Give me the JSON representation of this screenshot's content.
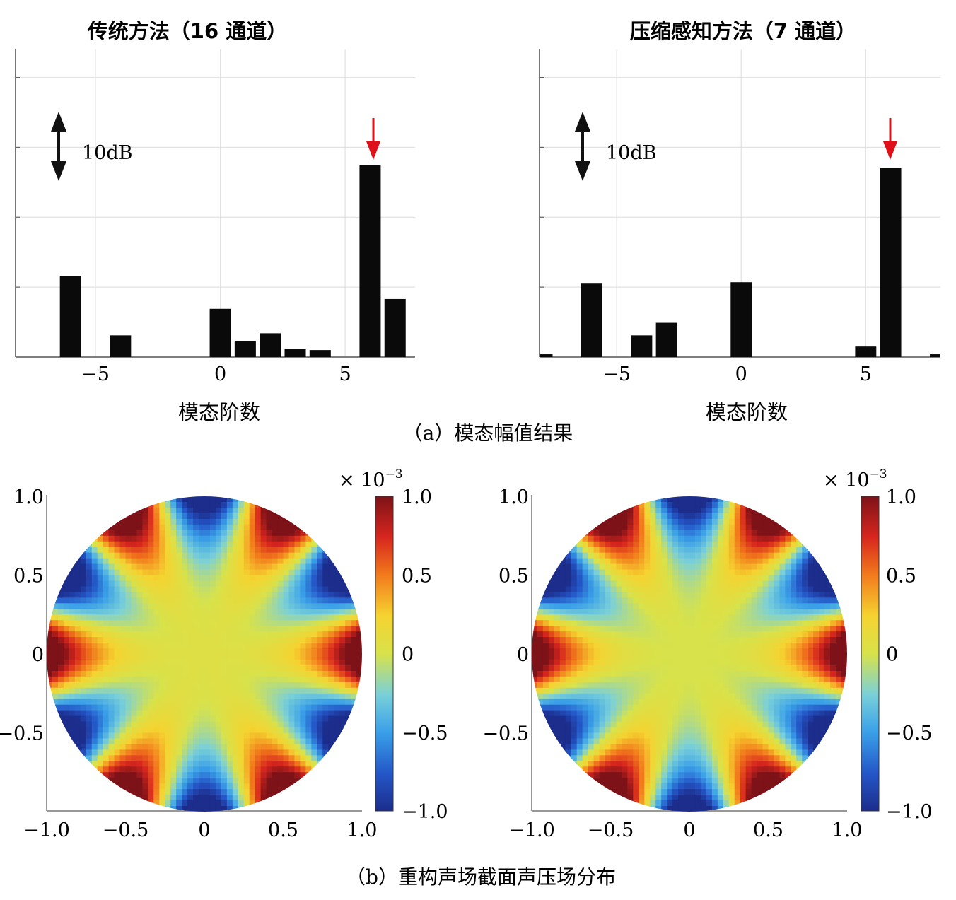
{
  "chart_data": [
    {
      "type": "bar",
      "title": "传统方法（16 通道）",
      "xlabel": "模态阶数",
      "ylabel": "",
      "x": [
        -6,
        -4,
        0,
        1,
        2,
        3,
        4,
        6,
        7
      ],
      "values": [
        11.6,
        3.1,
        6.9,
        2.3,
        3.4,
        1.2,
        1.0,
        27.5,
        8.3
      ],
      "xlim": [
        -8.2,
        7.8
      ],
      "ylim": [
        0,
        44
      ],
      "xticks": [
        -5,
        0,
        5
      ],
      "xtick_labels": [
        "−5",
        "0",
        "5"
      ],
      "scale_annotation": "10dB",
      "highlight_x": 6,
      "grid": true
    },
    {
      "type": "bar",
      "title": "压缩感知方法（7 通道）",
      "xlabel": "模态阶数",
      "ylabel": "",
      "x": [
        -8,
        -6,
        -4,
        -3,
        0,
        5,
        6,
        8
      ],
      "values": [
        0.4,
        10.6,
        3.1,
        4.9,
        10.7,
        1.5,
        27.1,
        0.4
      ],
      "xlim": [
        -8.1,
        8
      ],
      "ylim": [
        0,
        44
      ],
      "xticks": [
        -5,
        0,
        5
      ],
      "xtick_labels": [
        "−5",
        "0",
        "5"
      ],
      "scale_annotation": "10dB",
      "highlight_x": 6,
      "grid": true
    },
    {
      "type": "heatmap",
      "title": "传统方法（16 通道）",
      "field": "cos(6θ) modal pattern on unit disk",
      "xlim": [
        -1.0,
        1.0
      ],
      "ylim": [
        -1.0,
        1.0
      ],
      "xticks": [
        "−1.0",
        "−0.5",
        "0",
        "0.5",
        "1.0"
      ],
      "yticks": [
        "1.0",
        "0.5",
        "0",
        "−0.5"
      ],
      "colorbar_ticks": [
        "1.0",
        "0.5",
        "0",
        "−0.5",
        "−1.0"
      ],
      "colorbar_range": [
        -1.0,
        1.0
      ],
      "colorbar_scale": "× 10",
      "colorbar_exponent": "−3"
    },
    {
      "type": "heatmap",
      "title": "压缩感知方法（7 通道）",
      "field": "cos(6θ) modal pattern on unit disk",
      "xlim": [
        -1.0,
        1.0
      ],
      "ylim": [
        -1.0,
        1.0
      ],
      "xticks": [
        "−1.0",
        "−0.5",
        "0",
        "0.5",
        "1.0"
      ],
      "yticks": [
        "1.0",
        "0.5",
        "0",
        "−0.5"
      ],
      "colorbar_ticks": [
        "1.0",
        "0.5",
        "0",
        "−0.5",
        "−1.0"
      ],
      "colorbar_range": [
        -1.0,
        1.0
      ],
      "colorbar_scale": "× 10",
      "colorbar_exponent": "−3"
    }
  ],
  "captions": {
    "a": "（a）模态幅值结果",
    "b": "（b）重构声场截面声压场分布"
  },
  "colors": {
    "bar": "#0a0a0a",
    "highlight_arrow": "#e0101a",
    "grid": "#e2e2e2",
    "axis": "#555555"
  }
}
